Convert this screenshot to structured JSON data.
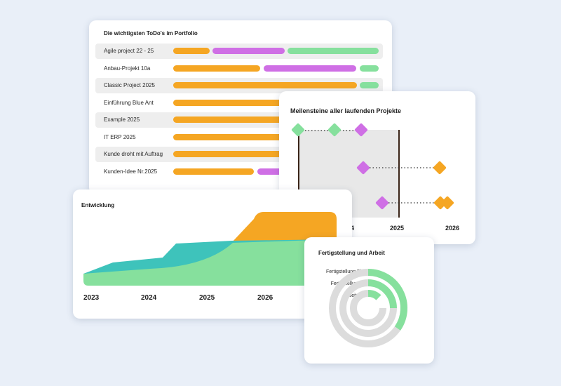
{
  "todo": {
    "title": "Die wichtigsten ToDo's im Portfolio",
    "rows": [
      {
        "name": "Agile project 22 - 25"
      },
      {
        "name": "Anbau-Projekt 10a"
      },
      {
        "name": "Classic Project 2025"
      },
      {
        "name": "Einführung Blue Ant"
      },
      {
        "name": "Example 2025"
      },
      {
        "name": "IT ERP 2025"
      },
      {
        "name": "Kunde droht mit Auftrag"
      },
      {
        "name": "Kunden-Idee Nr.2025"
      }
    ]
  },
  "milestones": {
    "title": "Meilensteine aller laufenden Projekte",
    "years": [
      "4",
      "2025",
      "2026"
    ]
  },
  "development": {
    "title": "Entwicklung",
    "years": [
      "2023",
      "2024",
      "2025",
      "2026"
    ]
  },
  "completion": {
    "title": "Fertigstellung und Arbeit",
    "legend": [
      "Fertigstellung Plan",
      "Fertigstellung Ist",
      "Arbeitslast"
    ]
  },
  "colors": {
    "orange": "#f5a623",
    "purple": "#cf6fe5",
    "green": "#86e09d",
    "teal": "#3ec3bb",
    "grey": "#dcdcdc",
    "background": "#e9eff8"
  }
}
